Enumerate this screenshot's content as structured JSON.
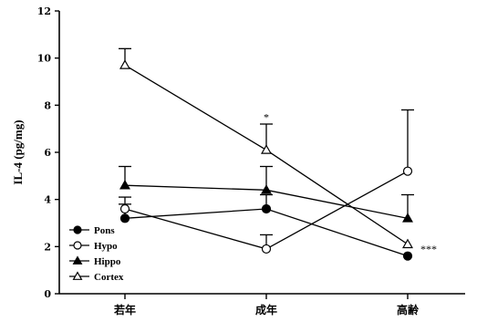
{
  "chart_data": {
    "type": "line",
    "categories": [
      "若年",
      "成年",
      "高齢"
    ],
    "ylabel": "IL-4 (pg/mg)",
    "xlabel": "",
    "ylim": [
      0,
      12
    ],
    "yticks": [
      0,
      2,
      4,
      6,
      8,
      10,
      12
    ],
    "legend_position": "bottom-left",
    "series": [
      {
        "name": "Pons",
        "marker": "filled-circle",
        "values": [
          3.2,
          3.6,
          1.6
        ],
        "errors": [
          0.6,
          0.6,
          0.0
        ]
      },
      {
        "name": "Hypo",
        "marker": "open-circle",
        "values": [
          3.6,
          1.9,
          5.2
        ],
        "errors": [
          0.5,
          0.6,
          2.6
        ]
      },
      {
        "name": "Hippo",
        "marker": "filled-triangle",
        "values": [
          4.6,
          4.4,
          3.2
        ],
        "errors": [
          0.8,
          1.0,
          1.0
        ]
      },
      {
        "name": "Cortex",
        "marker": "open-triangle",
        "values": [
          9.7,
          6.1,
          2.1
        ],
        "errors": [
          0.7,
          1.1,
          0.0
        ]
      }
    ],
    "annotations": [
      {
        "text": "*",
        "category_index": 1,
        "y": 7.5
      },
      {
        "text": "***",
        "category_index": 2,
        "y": 1.9
      }
    ]
  }
}
